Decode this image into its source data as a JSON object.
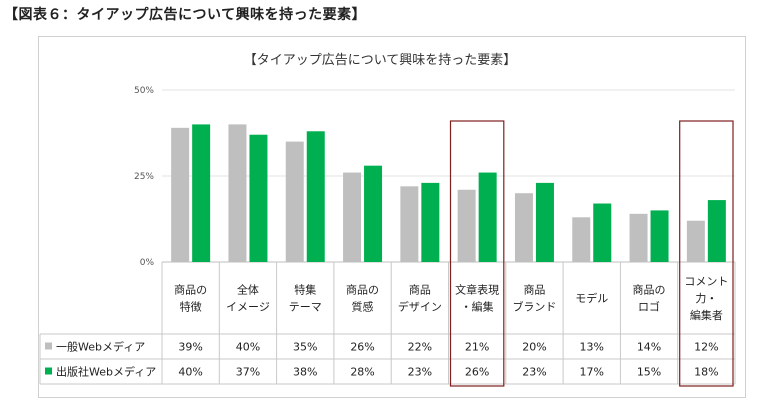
{
  "heading": "【図表６：タイアップ広告について興味を持った要素】",
  "chart_data": {
    "type": "bar",
    "title": "【タイアップ広告について興味を持った要素】",
    "yticks": [
      "50%",
      "25%",
      "0%"
    ],
    "ylim": [
      0,
      50
    ],
    "categories": [
      [
        "商品の",
        "特徴"
      ],
      [
        "全体",
        "イメージ"
      ],
      [
        "特集",
        "テーマ"
      ],
      [
        "商品の",
        "質感"
      ],
      [
        "商品",
        "デザイン"
      ],
      [
        "文章表現",
        "・編集"
      ],
      [
        "商品",
        "ブランド"
      ],
      [
        "モデル"
      ],
      [
        "商品の",
        "ロゴ"
      ],
      [
        "コメント",
        "力・",
        "編集者"
      ]
    ],
    "series": [
      {
        "name": "一般Webメディア",
        "color": "#bfbfbf",
        "values": [
          39,
          40,
          35,
          26,
          22,
          21,
          20,
          13,
          14,
          12
        ],
        "labels": [
          "39%",
          "40%",
          "35%",
          "26%",
          "22%",
          "21%",
          "20%",
          "13%",
          "14%",
          "12%"
        ]
      },
      {
        "name": "出版社Webメディア",
        "color": "#00b050",
        "values": [
          40,
          37,
          38,
          28,
          23,
          26,
          23,
          17,
          15,
          18
        ],
        "labels": [
          "40%",
          "37%",
          "38%",
          "28%",
          "23%",
          "26%",
          "23%",
          "17%",
          "15%",
          "18%"
        ]
      }
    ],
    "highlighted_categories": [
      5,
      9
    ],
    "highlight_color": "#7f1f1f",
    "grid": true,
    "legend": "in data table"
  }
}
